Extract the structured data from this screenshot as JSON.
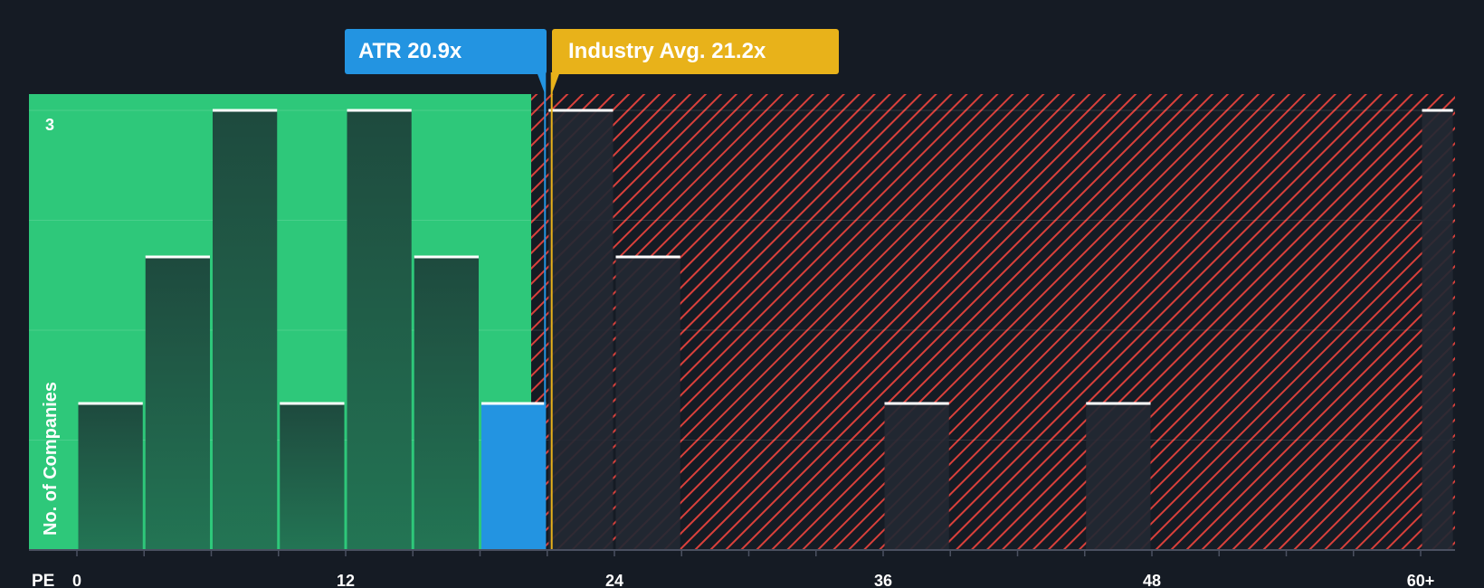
{
  "chart_data": {
    "type": "bar",
    "x_axis_label": "PE",
    "y_axis_label": "No. of Companies",
    "x_ticks": [
      "0",
      "12",
      "24",
      "36",
      "48",
      "60+"
    ],
    "y_tick_label": "3",
    "ylim": [
      0,
      3
    ],
    "bins": [
      {
        "range": [
          0,
          3
        ],
        "count": 1,
        "highlighted": false
      },
      {
        "range": [
          3,
          6
        ],
        "count": 2,
        "highlighted": false
      },
      {
        "range": [
          6,
          9
        ],
        "count": 3,
        "highlighted": false
      },
      {
        "range": [
          9,
          12
        ],
        "count": 1,
        "highlighted": false
      },
      {
        "range": [
          12,
          15
        ],
        "count": 3,
        "highlighted": false
      },
      {
        "range": [
          15,
          18
        ],
        "count": 2,
        "highlighted": false
      },
      {
        "range": [
          18,
          21
        ],
        "count": 1,
        "highlighted": true
      },
      {
        "range": [
          21,
          24
        ],
        "count": 3,
        "highlighted": false
      },
      {
        "range": [
          24,
          27
        ],
        "count": 2,
        "highlighted": false
      },
      {
        "range": [
          36,
          39
        ],
        "count": 1,
        "highlighted": false
      },
      {
        "range": [
          45,
          48
        ],
        "count": 1,
        "highlighted": false
      },
      {
        "range": [
          60,
          61.5
        ],
        "count": 3,
        "highlighted": false
      }
    ],
    "company_marker": {
      "label": "ATR 20.9x",
      "value": 20.9
    },
    "industry_marker": {
      "label": "Industry Avg. 21.2x",
      "value": 21.2
    },
    "colors": {
      "background": "#151b24",
      "below_avg_zone": "#2ec87a",
      "above_avg_hatch": "#d9403b",
      "company": "#2394e1",
      "industry": "#e8b21a",
      "bar_green_top": "#1e4a3e",
      "bar_green_bottom": "#237554",
      "bar_dark": "#232833"
    }
  }
}
